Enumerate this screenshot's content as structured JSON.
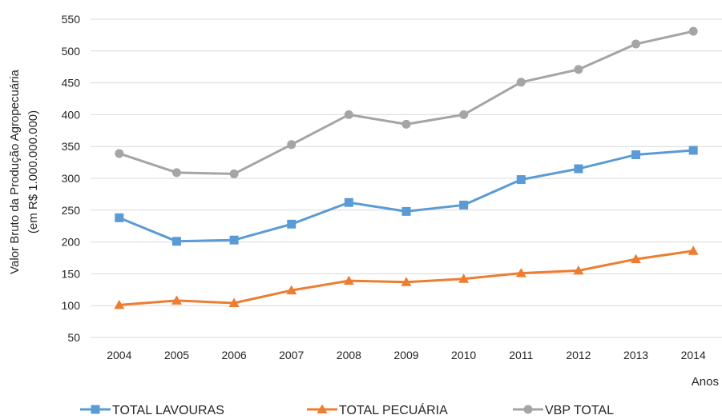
{
  "chart_data": {
    "type": "line",
    "title": "",
    "ylabel_line1": "Valor Bruto da Produção Agropecuária",
    "ylabel_line2": "(em R$ 1.000.000.000)",
    "xlabel": "Anos",
    "ylim": [
      50,
      550
    ],
    "yticks": [
      50,
      100,
      150,
      200,
      250,
      300,
      350,
      400,
      450,
      500,
      550
    ],
    "grid": "horizontal",
    "legend_position": "bottom",
    "categories": [
      "2004",
      "2005",
      "2006",
      "2007",
      "2008",
      "2009",
      "2010",
      "2011",
      "2012",
      "2013",
      "2014"
    ],
    "series": [
      {
        "name": "TOTAL LAVOURAS",
        "marker": "square",
        "color": "#5B9BD5",
        "values": [
          238,
          201,
          203,
          228,
          262,
          248,
          258,
          298,
          315,
          337,
          344
        ]
      },
      {
        "name": "TOTAL PECUÁRIA",
        "marker": "triangle",
        "color": "#ED7D31",
        "values": [
          101,
          108,
          104,
          124,
          139,
          137,
          142,
          151,
          155,
          173,
          186
        ]
      },
      {
        "name": "VBP TOTAL",
        "marker": "circle",
        "color": "#A5A5A5",
        "values": [
          339,
          309,
          307,
          353,
          400,
          385,
          400,
          451,
          471,
          511,
          531
        ]
      }
    ]
  }
}
